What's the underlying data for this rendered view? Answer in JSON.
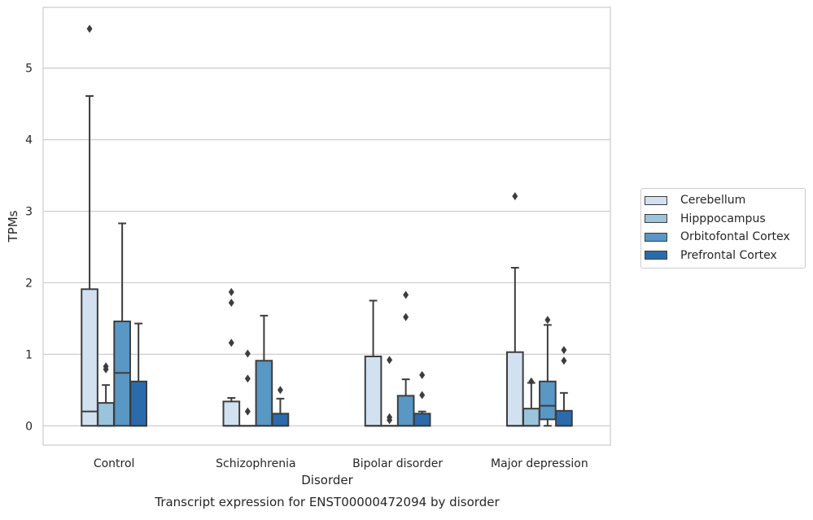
{
  "chart_data": {
    "type": "box",
    "xlabel": "Disorder",
    "ylabel": "TPMs",
    "caption": "Transcript expression for ENST00000472094 by disorder",
    "yticks": [
      "0",
      "1",
      "2",
      "3",
      "4",
      "5"
    ],
    "ylim": [
      -0.27,
      5.85
    ],
    "grid": true,
    "legend_position": "right",
    "categories": [
      "Control",
      "Schizophrenia",
      "Bipolar disorder",
      "Major depression"
    ],
    "series": [
      {
        "name": "Cerebellum",
        "color": "#d1e1f0",
        "boxes": [
          {
            "q1": 0,
            "median": 0.2,
            "q3": 1.91,
            "whisker_low": 0,
            "whisker_high": 4.61,
            "outliers": [
              5.55
            ]
          },
          {
            "q1": 0,
            "median": 0,
            "q3": 0.34,
            "whisker_low": 0,
            "whisker_high": 0.39,
            "outliers": [
              1.16,
              1.72,
              1.87
            ]
          },
          {
            "q1": 0,
            "median": 0,
            "q3": 0.97,
            "whisker_low": 0,
            "whisker_high": 1.75,
            "outliers": []
          },
          {
            "q1": 0,
            "median": 0,
            "q3": 1.03,
            "whisker_low": 0,
            "whisker_high": 2.21,
            "outliers": [
              3.21
            ]
          }
        ]
      },
      {
        "name": "Hipppocampus",
        "color": "#9ac4dc",
        "boxes": [
          {
            "q1": 0,
            "median": 0,
            "q3": 0.32,
            "whisker_low": 0,
            "whisker_high": 0.57,
            "outliers": [
              0.79,
              0.83
            ]
          },
          {
            "q1": 0,
            "median": 0,
            "q3": 0,
            "whisker_low": 0,
            "whisker_high": 0,
            "outliers": [
              0.2,
              0.66,
              1.01
            ]
          },
          {
            "q1": 0,
            "median": 0,
            "q3": 0,
            "whisker_low": 0,
            "whisker_high": 0,
            "outliers": [
              0.08,
              0.12,
              0.92
            ]
          },
          {
            "q1": 0,
            "median": 0,
            "q3": 0.24,
            "whisker_low": 0,
            "whisker_high": 0.6,
            "outliers": [
              0.62
            ]
          }
        ]
      },
      {
        "name": "Orbitofontal Cortex",
        "color": "#5997c4",
        "boxes": [
          {
            "q1": 0,
            "median": 0.74,
            "q3": 1.46,
            "whisker_low": 0,
            "whisker_high": 2.83,
            "outliers": []
          },
          {
            "q1": 0,
            "median": 0,
            "q3": 0.91,
            "whisker_low": 0,
            "whisker_high": 1.54,
            "outliers": []
          },
          {
            "q1": 0,
            "median": 0,
            "q3": 0.42,
            "whisker_low": 0,
            "whisker_high": 0.65,
            "outliers": [
              1.52,
              1.83
            ]
          },
          {
            "q1": 0.09,
            "median": 0.28,
            "q3": 0.62,
            "whisker_low": 0,
            "whisker_high": 1.41,
            "outliers": [
              1.48
            ]
          }
        ]
      },
      {
        "name": "Prefrontal Cortex",
        "color": "#2b6bac",
        "boxes": [
          {
            "q1": 0,
            "median": 0,
            "q3": 0.62,
            "whisker_low": 0,
            "whisker_high": 1.43,
            "outliers": []
          },
          {
            "q1": 0,
            "median": 0,
            "q3": 0.17,
            "whisker_low": 0,
            "whisker_high": 0.38,
            "outliers": [
              0.5
            ]
          },
          {
            "q1": 0,
            "median": 0,
            "q3": 0.17,
            "whisker_low": 0,
            "whisker_high": 0.2,
            "outliers": [
              0.43,
              0.71
            ]
          },
          {
            "q1": 0,
            "median": 0,
            "q3": 0.21,
            "whisker_low": 0,
            "whisker_high": 0.46,
            "outliers": [
              0.91,
              1.06
            ]
          }
        ]
      }
    ]
  }
}
